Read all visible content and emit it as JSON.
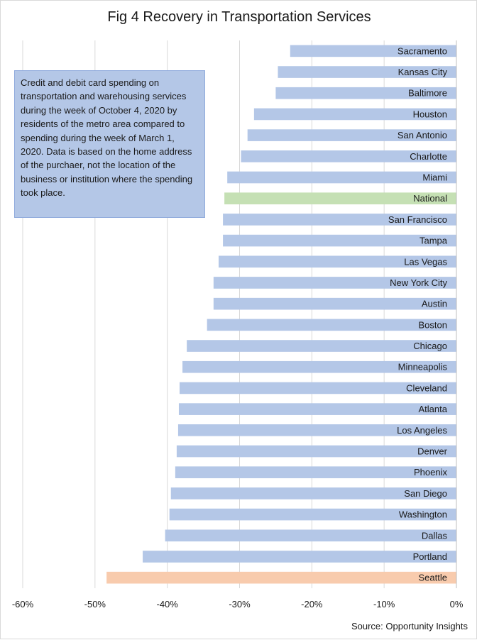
{
  "chart_data": {
    "type": "bar",
    "orientation": "horizontal",
    "title": "Fig 4 Recovery in Transportation Services",
    "categories": [
      "Sacramento",
      "Kansas City",
      "Baltimore",
      "Houston",
      "San Antonio",
      "Charlotte",
      "Miami",
      "National",
      "San Francisco",
      "Tampa",
      "Las Vegas",
      "New York City",
      "Austin",
      "Boston",
      "Chicago",
      "Minneapolis",
      "Cleveland",
      "Atlanta",
      "Los Angeles",
      "Denver",
      "Phoenix",
      "San Diego",
      "Washington",
      "Dallas",
      "Portland",
      "Seattle"
    ],
    "values": [
      -23.0,
      -24.7,
      -25.0,
      -28.0,
      -28.9,
      -29.8,
      -31.7,
      -32.1,
      -32.3,
      -32.3,
      -32.9,
      -33.6,
      -33.6,
      -34.5,
      -37.3,
      -37.9,
      -38.3,
      -38.4,
      -38.5,
      -38.7,
      -38.9,
      -39.5,
      -39.7,
      -40.3,
      -43.4,
      -48.4
    ],
    "highlight": {
      "National": "#c5e0b4",
      "Seattle": "#f8cbad"
    },
    "bar_color": "#b4c7e7",
    "xlim": [
      -60,
      0
    ],
    "x_ticks": [
      -60,
      -50,
      -40,
      -30,
      -20,
      -10,
      0
    ],
    "x_tick_labels": [
      "-60%",
      "-50%",
      "-40%",
      "-30%",
      "-20%",
      "-10%",
      "0%"
    ],
    "grid": "vertical",
    "xlabel": "",
    "ylabel": ""
  },
  "annotation": "Credit and debit card spending on transportation and warehousing services during the week of October 4, 2020 by residents of the metro area compared to spending during the week of March 1, 2020. Data is based on the home address of the purchaer, not the location of the business or institution where the spending took place.",
  "source": "Source: Opportunity Insights"
}
